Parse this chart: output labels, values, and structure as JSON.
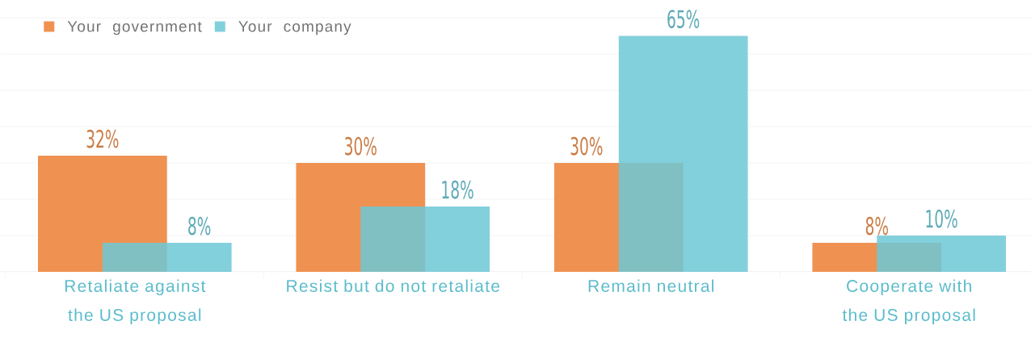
{
  "chart_data": {
    "type": "bar",
    "categories": [
      "Retaliate against the US proposal",
      "Resist but do not retaliate",
      "Remain neutral",
      "Cooperate with the US proposal"
    ],
    "series": [
      {
        "name": "Your government",
        "color": "#ef9251",
        "values": [
          32,
          30,
          30,
          8
        ],
        "value_labels": [
          "32%",
          "30%",
          "30%",
          "8%"
        ]
      },
      {
        "name": "Your company",
        "color": "#6cc8d6",
        "values": [
          8,
          18,
          65,
          10
        ],
        "value_labels": [
          "8%",
          "18%",
          "65%",
          "10%"
        ]
      }
    ],
    "grid": "y",
    "legend": "top left",
    "tick_labels": "x"
  }
}
